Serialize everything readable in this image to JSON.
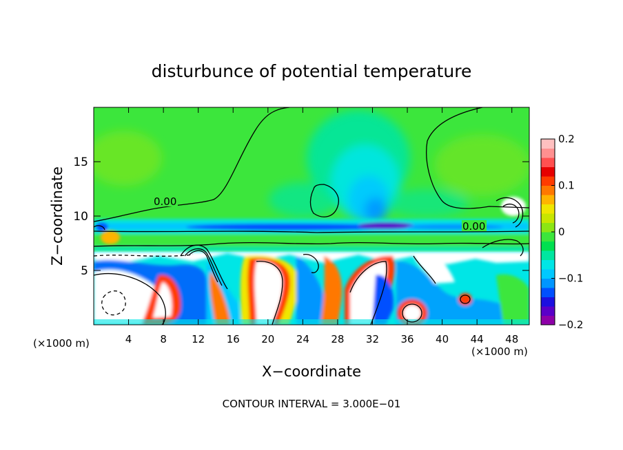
{
  "chart_data": {
    "type": "heatmap",
    "title": "disturbunce of potential temperature",
    "xlabel": "X−coordinate",
    "ylabel": "Z−coordinate",
    "x_unit_left": "(×1000 m)",
    "x_unit_right": "(×1000 m)",
    "xlim": [
      0,
      50
    ],
    "ylim": [
      0,
      20
    ],
    "x_ticks": [
      4,
      8,
      12,
      16,
      20,
      24,
      28,
      32,
      36,
      40,
      44,
      48
    ],
    "y_ticks": [
      5,
      10,
      15
    ],
    "colorbar": {
      "range": [
        -0.2,
        0.2
      ],
      "tick_values": [
        0.2,
        0.1,
        0,
        -0.1,
        -0.2
      ],
      "tick_labels": [
        "0.2",
        "0.1",
        "0",
        "−0.1",
        "−0.2"
      ],
      "colors": [
        "#8e00a8",
        "#5a00c8",
        "#1c10e0",
        "#0050ff",
        "#0096ff",
        "#00c8ff",
        "#00e6e6",
        "#00e6a0",
        "#00e050",
        "#3ce63c",
        "#8ce614",
        "#c8e600",
        "#f0e600",
        "#ffb400",
        "#ff7800",
        "#ff3c00",
        "#e60000",
        "#ff5050",
        "#ff9090",
        "#ffc0c0"
      ]
    },
    "contour_labels": [
      "0.00",
      "0.00"
    ],
    "contour_interval_text": "CONTOUR INTERVAL = 3.000E−01",
    "grid": false,
    "legend": "colorbar-right"
  }
}
